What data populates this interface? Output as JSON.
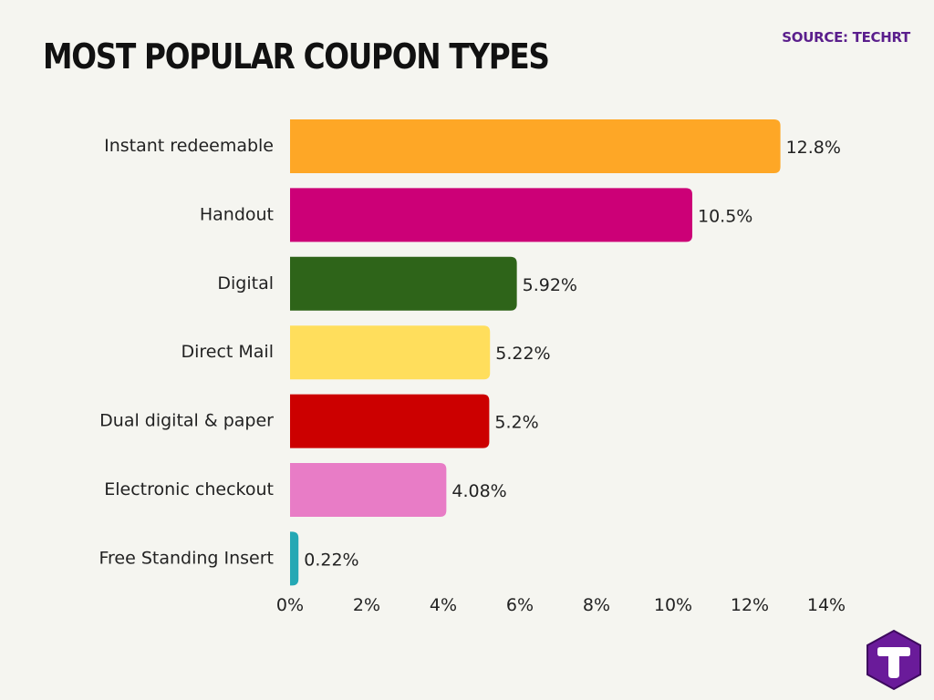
{
  "header": {
    "title": "MOST POPULAR COUPON TYPES",
    "source": "SOURCE: TECHRT"
  },
  "logo": {
    "icon": "techrt-logo-icon",
    "color": "#6a1b9a"
  },
  "chart_data": {
    "type": "bar",
    "orientation": "horizontal",
    "title": "MOST POPULAR COUPON TYPES",
    "categories": [
      "Instant redeemable",
      "Handout",
      "Digital",
      "Direct Mail",
      "Dual digital & paper",
      "Electronic checkout",
      "Free Standing Insert"
    ],
    "values": [
      12.8,
      10.5,
      5.92,
      5.22,
      5.2,
      4.08,
      0.22
    ],
    "value_labels": [
      "12.8%",
      "10.5%",
      "5.92%",
      "5.22%",
      "5.2%",
      "4.08%",
      "0.22%"
    ],
    "colors": [
      "#fea726",
      "#cc0077",
      "#2e6419",
      "#ffde5c",
      "#cc0000",
      "#e87cc6",
      "#24a8b4"
    ],
    "xlim": [
      0,
      14
    ],
    "xticks": [
      0,
      2,
      4,
      6,
      8,
      10,
      12,
      14
    ],
    "xtick_labels": [
      "0%",
      "2%",
      "4%",
      "6%",
      "8%",
      "10%",
      "12%",
      "14%"
    ],
    "xlabel": "",
    "ylabel": "",
    "grid": false,
    "legend": "none"
  }
}
